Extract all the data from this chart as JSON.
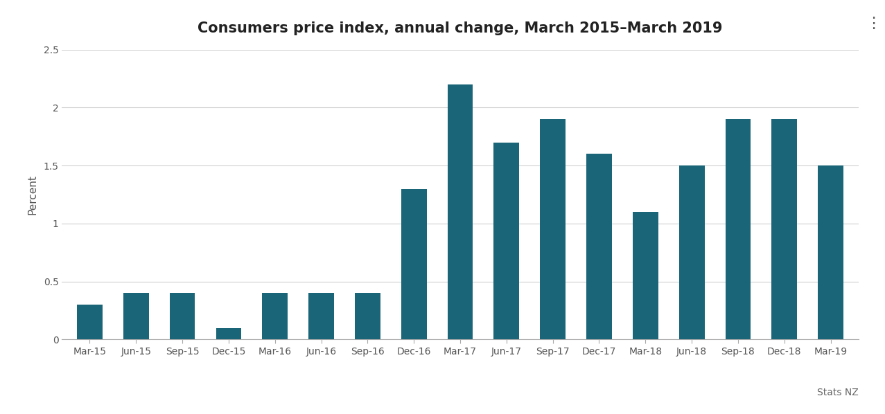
{
  "title": "Consumers price index, annual change, March 2015–March 2019",
  "ylabel": "Percent",
  "categories": [
    "Mar-15",
    "Jun-15",
    "Sep-15",
    "Dec-15",
    "Mar-16",
    "Jun-16",
    "Sep-16",
    "Dec-16",
    "Mar-17",
    "Jun-17",
    "Sep-17",
    "Dec-17",
    "Mar-18",
    "Jun-18",
    "Sep-18",
    "Dec-18",
    "Mar-19"
  ],
  "values": [
    0.3,
    0.4,
    0.4,
    0.1,
    0.4,
    0.4,
    0.4,
    1.3,
    2.2,
    1.7,
    1.9,
    1.6,
    1.1,
    1.5,
    1.9,
    1.9,
    1.5
  ],
  "bar_color": "#1a6678",
  "ylim": [
    0,
    2.5
  ],
  "yticks": [
    0,
    0.5,
    1.0,
    1.5,
    2.0,
    2.5
  ],
  "background_color": "#ffffff",
  "grid_color": "#d0d0d0",
  "title_fontsize": 15,
  "ylabel_fontsize": 11,
  "tick_fontsize": 10,
  "source_text": "Stats NZ",
  "source_fontsize": 10
}
